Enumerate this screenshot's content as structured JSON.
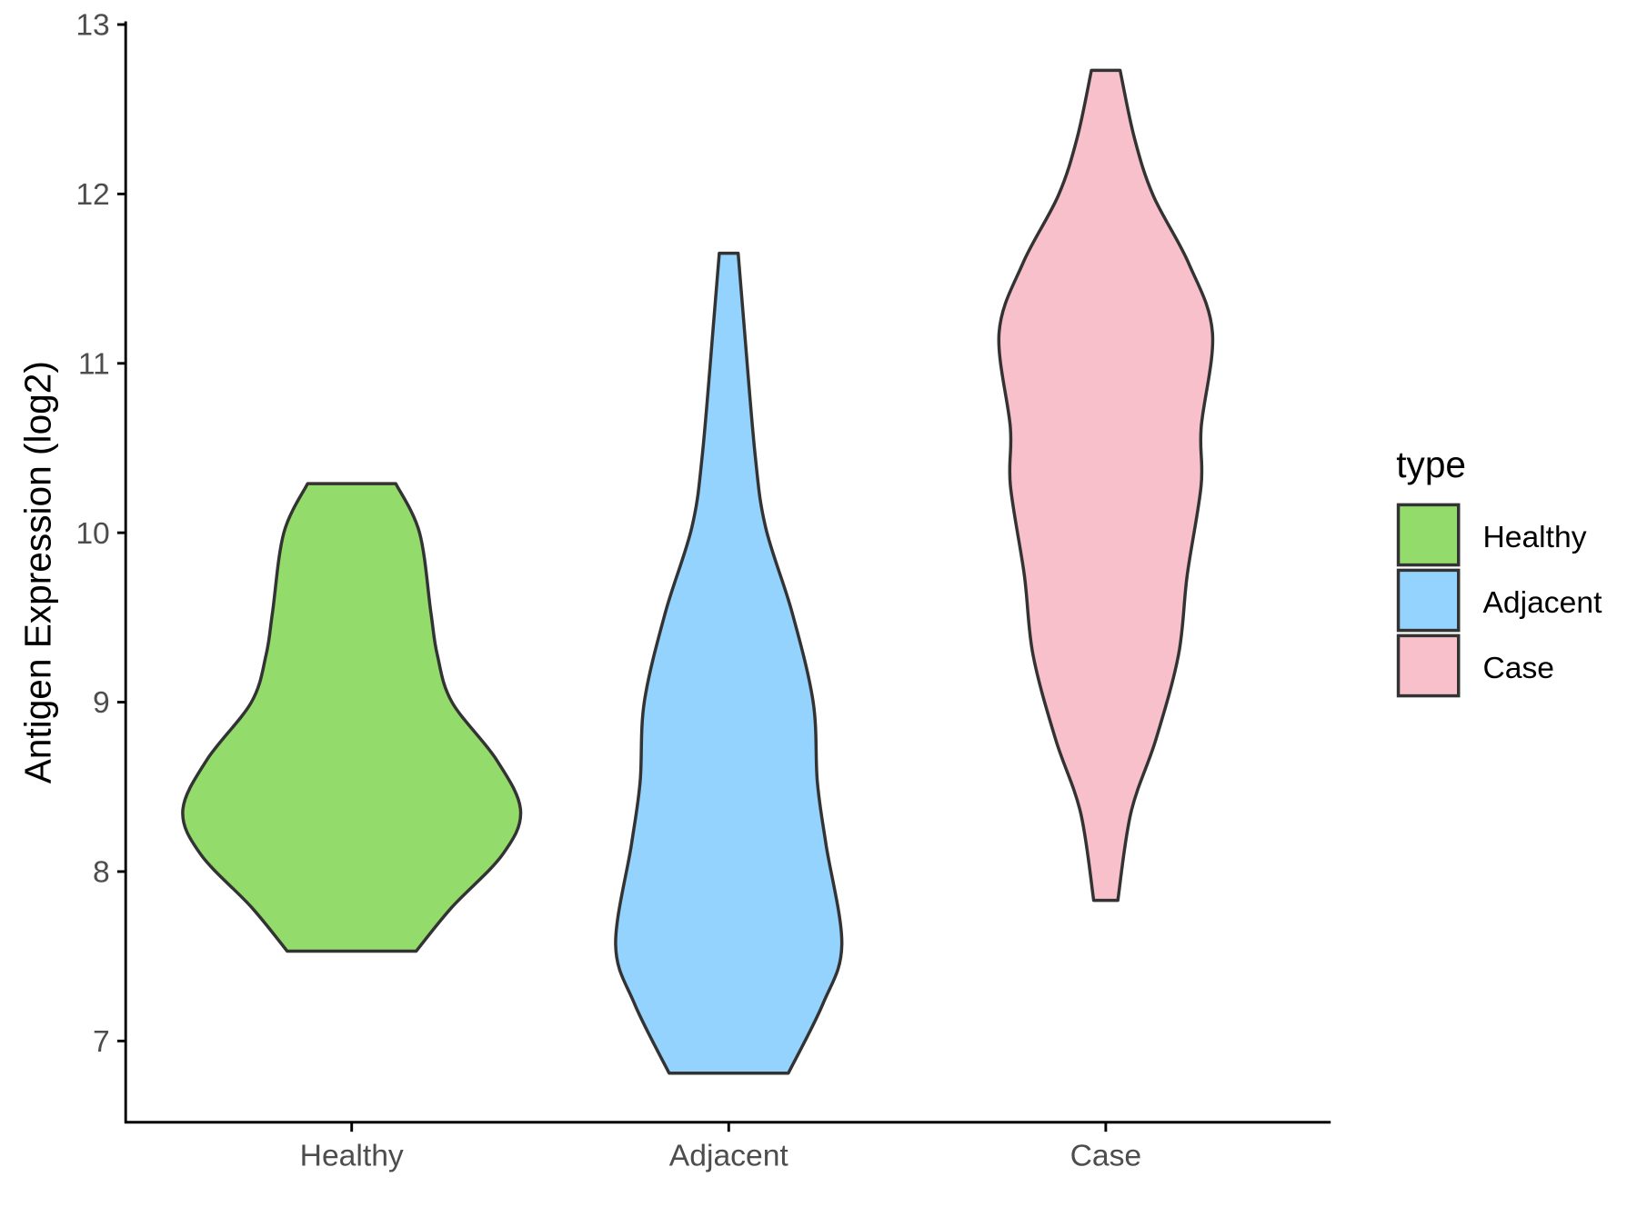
{
  "chart_data": {
    "type": "violin",
    "title": "",
    "xlabel": "",
    "ylabel": "Antigen Expression (log2)",
    "ylim": [
      6.5,
      13
    ],
    "yticks": [
      7,
      8,
      9,
      10,
      11,
      12,
      13
    ],
    "categories": [
      "Healthy",
      "Adjacent",
      "Case"
    ],
    "legend": {
      "title": "type",
      "placement": "right",
      "entries": [
        "Healthy",
        "Adjacent",
        "Case"
      ]
    },
    "colors": {
      "Healthy": "#93db6a",
      "Adjacent": "#93d3fe",
      "Case": "#f7c0cb",
      "outline": "#333333"
    },
    "series": [
      {
        "name": "Healthy",
        "min": 7.53,
        "max": 10.29,
        "profile": [
          [
            10.29,
            0.117
          ],
          [
            10.0,
            0.18
          ],
          [
            9.53,
            0.21
          ],
          [
            9.28,
            0.227
          ],
          [
            9.0,
            0.266
          ],
          [
            8.66,
            0.384
          ],
          [
            8.36,
            0.448
          ],
          [
            8.1,
            0.4
          ],
          [
            7.79,
            0.266
          ],
          [
            7.53,
            0.171
          ]
        ]
      },
      {
        "name": "Adjacent",
        "min": 6.81,
        "max": 11.65,
        "profile": [
          [
            11.65,
            0.025
          ],
          [
            11.27,
            0.039
          ],
          [
            10.46,
            0.07
          ],
          [
            10.03,
            0.098
          ],
          [
            9.53,
            0.168
          ],
          [
            9.0,
            0.224
          ],
          [
            8.53,
            0.235
          ],
          [
            8.16,
            0.258
          ],
          [
            7.57,
            0.3
          ],
          [
            7.22,
            0.25
          ],
          [
            6.81,
            0.158
          ]
        ]
      },
      {
        "name": "Case",
        "min": 7.83,
        "max": 12.73,
        "profile": [
          [
            12.73,
            0.038
          ],
          [
            12.33,
            0.076
          ],
          [
            11.99,
            0.126
          ],
          [
            11.59,
            0.22
          ],
          [
            11.18,
            0.283
          ],
          [
            10.62,
            0.253
          ],
          [
            10.28,
            0.253
          ],
          [
            9.75,
            0.216
          ],
          [
            9.28,
            0.193
          ],
          [
            8.78,
            0.133
          ],
          [
            8.35,
            0.067
          ],
          [
            7.83,
            0.032
          ]
        ]
      }
    ]
  }
}
